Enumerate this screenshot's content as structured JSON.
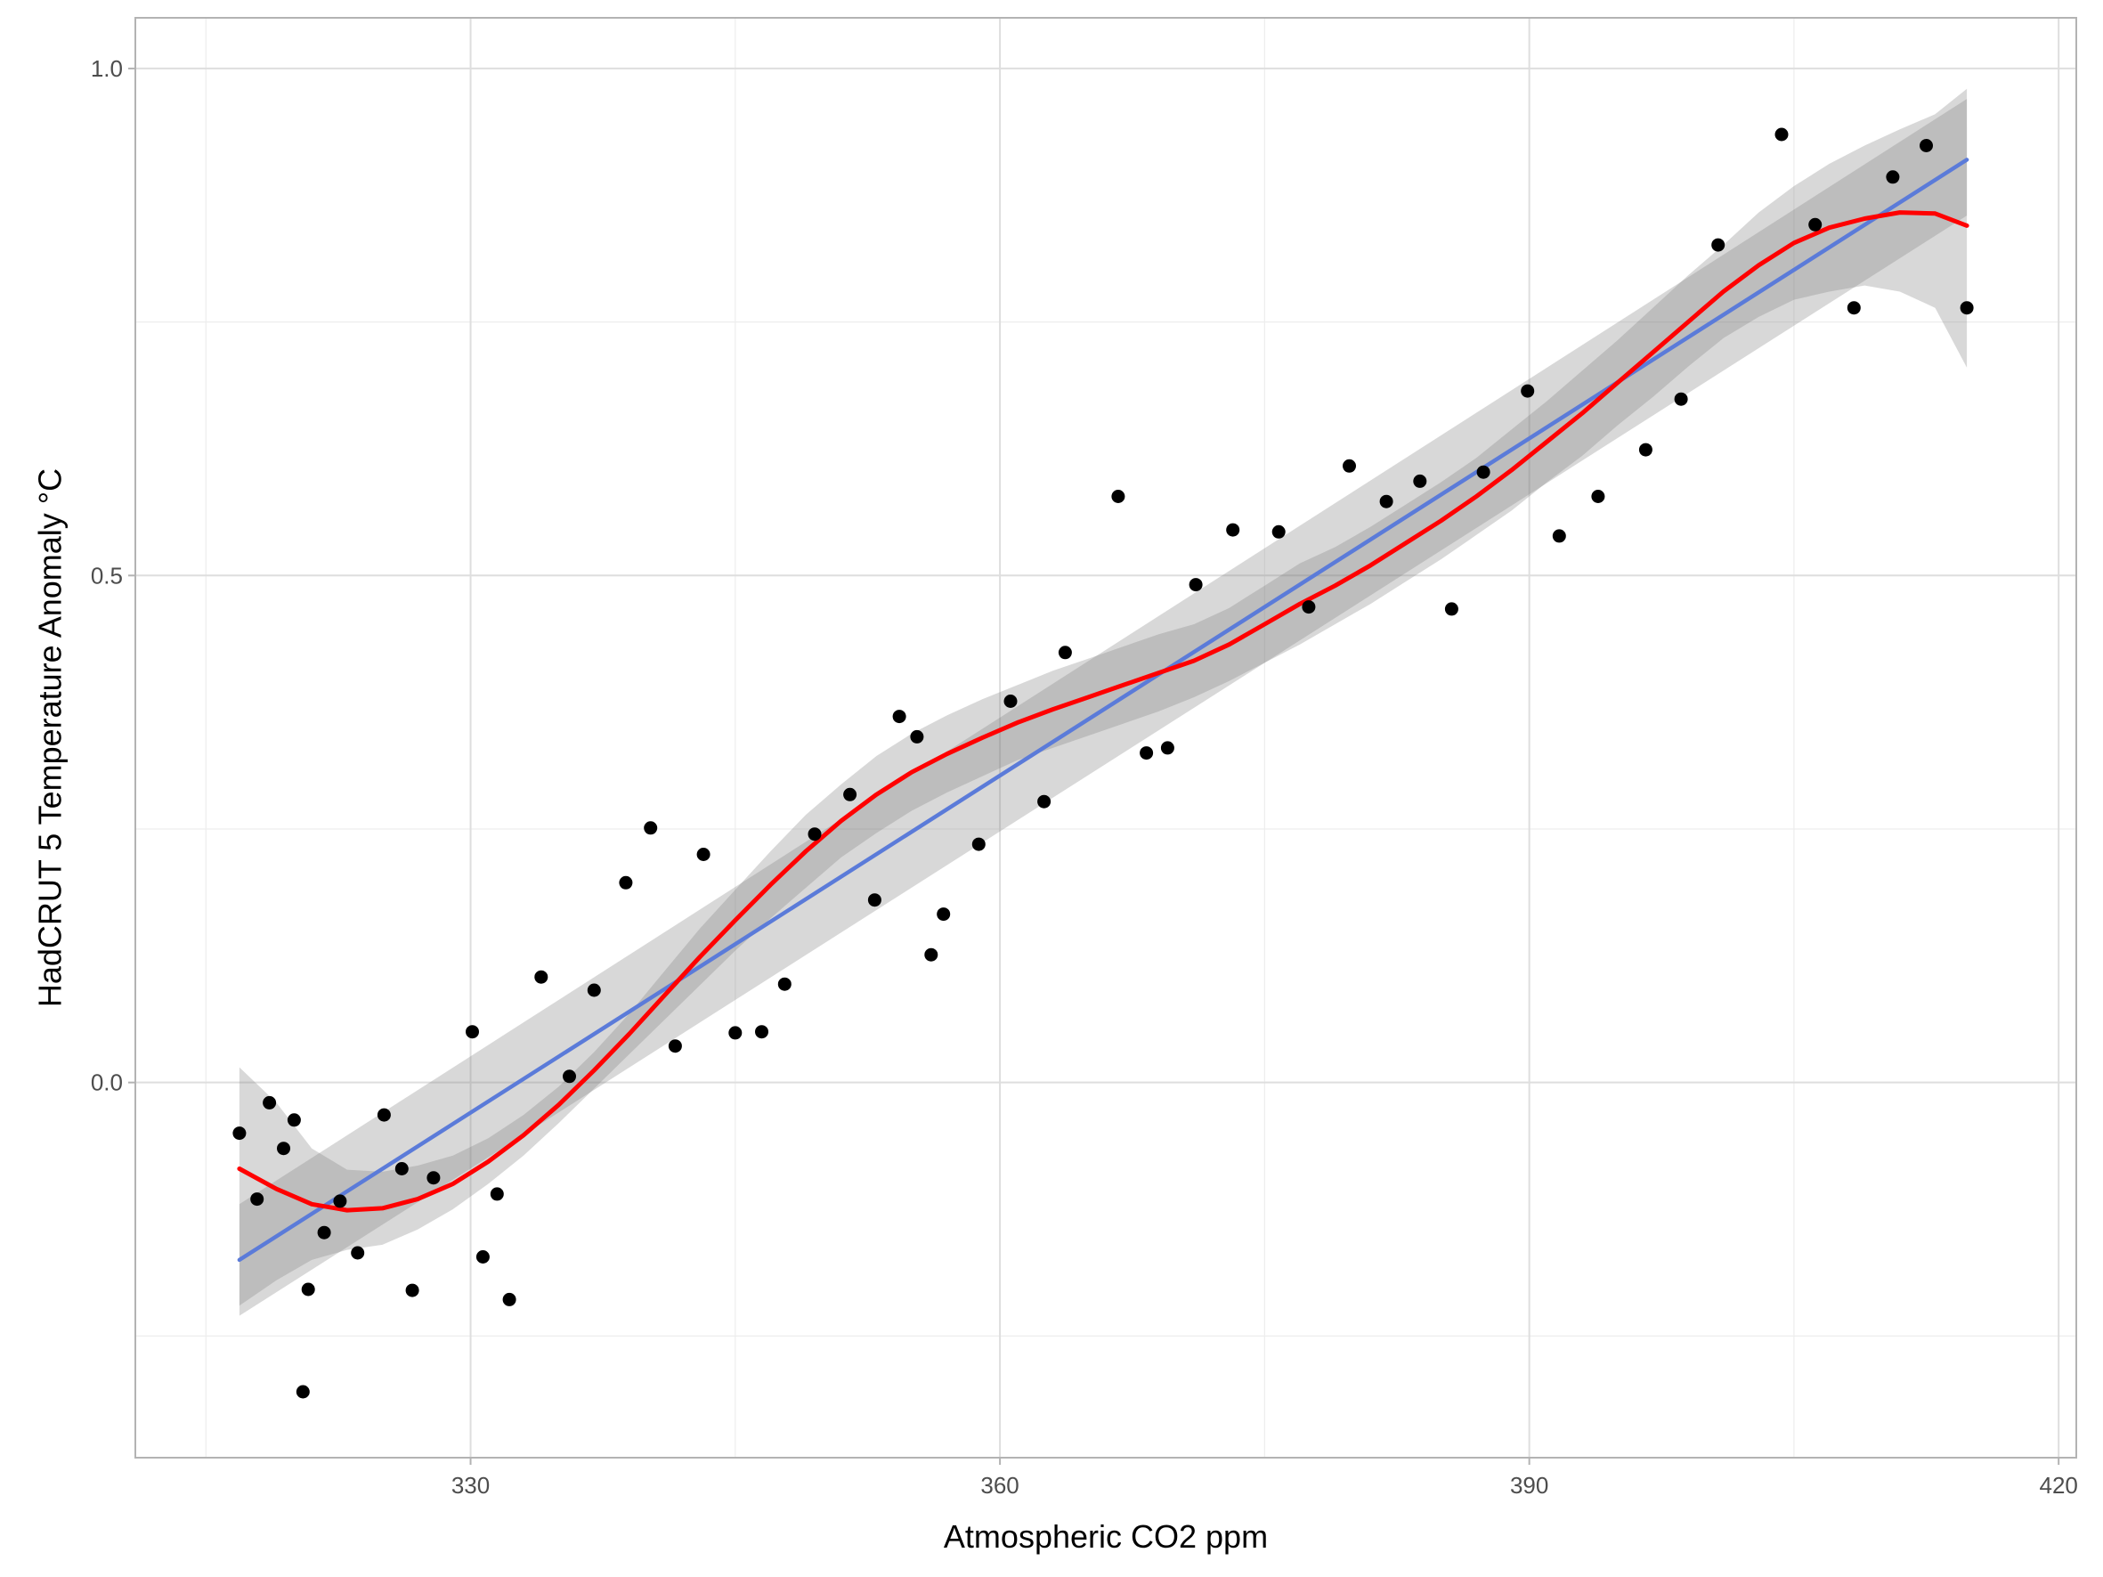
{
  "chart_data": {
    "type": "scatter",
    "title": "",
    "xlabel": "Atmospheric CO2 ppm",
    "ylabel": "HadCRUT 5 Temperature Anomaly °C",
    "xlim": [
      311,
      421
    ],
    "ylim": [
      -0.37,
      1.05
    ],
    "x_ticks": [
      330,
      360,
      390,
      420
    ],
    "x_tick_labels": [
      "330",
      "360",
      "390",
      "420"
    ],
    "y_ticks": [
      0.0,
      0.5,
      1.0
    ],
    "y_tick_labels": [
      "0.0",
      "0.5",
      "1.0"
    ],
    "y_minor_ticks": [
      -0.25,
      0.25,
      0.75
    ],
    "x_minor_ticks": [
      315,
      345,
      375,
      405
    ],
    "grid": true,
    "legend": "none",
    "points": [
      [
        316.9,
        -0.05
      ],
      [
        317.9,
        -0.115
      ],
      [
        318.6,
        -0.02
      ],
      [
        319.4,
        -0.065
      ],
      [
        320.0,
        -0.037
      ],
      [
        320.5,
        -0.305
      ],
      [
        320.8,
        -0.204
      ],
      [
        321.7,
        -0.148
      ],
      [
        322.6,
        -0.117
      ],
      [
        323.6,
        -0.168
      ],
      [
        325.1,
        -0.032
      ],
      [
        326.1,
        -0.085
      ],
      [
        326.7,
        -0.205
      ],
      [
        327.9,
        -0.094
      ],
      [
        330.1,
        0.05
      ],
      [
        330.7,
        -0.172
      ],
      [
        331.5,
        -0.11
      ],
      [
        332.2,
        -0.214
      ],
      [
        334.0,
        0.104
      ],
      [
        335.6,
        0.006
      ],
      [
        337.0,
        0.091
      ],
      [
        338.8,
        0.197
      ],
      [
        340.2,
        0.251
      ],
      [
        341.6,
        0.036
      ],
      [
        343.2,
        0.225
      ],
      [
        345.0,
        0.049
      ],
      [
        346.5,
        0.05
      ],
      [
        347.8,
        0.097
      ],
      [
        349.5,
        0.245
      ],
      [
        351.5,
        0.284
      ],
      [
        352.9,
        0.18
      ],
      [
        354.3,
        0.361
      ],
      [
        355.3,
        0.341
      ],
      [
        356.1,
        0.126
      ],
      [
        356.8,
        0.166
      ],
      [
        358.8,
        0.235
      ],
      [
        360.6,
        0.376
      ],
      [
        362.5,
        0.277
      ],
      [
        363.7,
        0.424
      ],
      [
        366.7,
        0.578
      ],
      [
        368.3,
        0.325
      ],
      [
        369.5,
        0.33
      ],
      [
        371.1,
        0.491
      ],
      [
        373.2,
        0.545
      ],
      [
        375.8,
        0.543
      ],
      [
        377.5,
        0.469
      ],
      [
        379.8,
        0.608
      ],
      [
        381.9,
        0.573
      ],
      [
        383.8,
        0.593
      ],
      [
        385.6,
        0.467
      ],
      [
        387.4,
        0.602
      ],
      [
        389.9,
        0.682
      ],
      [
        391.7,
        0.539
      ],
      [
        393.9,
        0.578
      ],
      [
        396.6,
        0.624
      ],
      [
        398.6,
        0.674
      ],
      [
        400.7,
        0.826
      ],
      [
        404.3,
        0.935
      ],
      [
        406.2,
        0.846
      ],
      [
        408.4,
        0.764
      ],
      [
        410.6,
        0.893
      ],
      [
        412.5,
        0.924
      ],
      [
        414.8,
        0.764
      ]
    ],
    "series": [
      {
        "kind": "linear_fit",
        "color": "#5b7bd9",
        "x": [
          316.9,
          414.8
        ],
        "y": [
          -0.175,
          0.91
        ],
        "ci_lower": [
          -0.23,
          0.855
        ],
        "ci_upper": [
          -0.12,
          0.97
        ]
      },
      {
        "kind": "loess_fit",
        "color": "#ff0000",
        "x": [
          316.9,
          319,
          321,
          323,
          325,
          327,
          329,
          331,
          333,
          335,
          337,
          339,
          341,
          343,
          345,
          347,
          349,
          351,
          353,
          355,
          357,
          359,
          361,
          363,
          365,
          367,
          369,
          371,
          373,
          375,
          377,
          379,
          381,
          383,
          385,
          387,
          389,
          391,
          393,
          395,
          397,
          399,
          401,
          403,
          405,
          407,
          409,
          411,
          413,
          414.8
        ],
        "y": [
          -0.085,
          -0.105,
          -0.12,
          -0.126,
          -0.124,
          -0.115,
          -0.1,
          -0.078,
          -0.052,
          -0.022,
          0.012,
          0.048,
          0.086,
          0.124,
          0.16,
          0.195,
          0.228,
          0.258,
          0.284,
          0.306,
          0.324,
          0.34,
          0.355,
          0.368,
          0.38,
          0.392,
          0.404,
          0.416,
          0.432,
          0.452,
          0.472,
          0.49,
          0.51,
          0.532,
          0.554,
          0.578,
          0.604,
          0.632,
          0.66,
          0.69,
          0.72,
          0.75,
          0.78,
          0.806,
          0.828,
          0.843,
          0.852,
          0.858,
          0.857,
          0.845
        ],
        "ci_lower": [
          -0.22,
          -0.195,
          -0.175,
          -0.165,
          -0.16,
          -0.145,
          -0.125,
          -0.1,
          -0.072,
          -0.04,
          -0.006,
          0.028,
          0.062,
          0.096,
          0.13,
          0.162,
          0.192,
          0.222,
          0.246,
          0.268,
          0.286,
          0.302,
          0.318,
          0.33,
          0.342,
          0.354,
          0.366,
          0.38,
          0.396,
          0.414,
          0.432,
          0.452,
          0.472,
          0.494,
          0.516,
          0.54,
          0.564,
          0.592,
          0.618,
          0.648,
          0.676,
          0.706,
          0.734,
          0.755,
          0.772,
          0.78,
          0.786,
          0.78,
          0.764,
          0.705
        ],
        "ci_upper": [
          0.015,
          -0.02,
          -0.065,
          -0.086,
          -0.088,
          -0.082,
          -0.072,
          -0.055,
          -0.032,
          -0.004,
          0.03,
          0.068,
          0.11,
          0.152,
          0.19,
          0.228,
          0.264,
          0.294,
          0.322,
          0.344,
          0.362,
          0.378,
          0.392,
          0.406,
          0.418,
          0.43,
          0.442,
          0.452,
          0.468,
          0.49,
          0.512,
          0.528,
          0.548,
          0.57,
          0.592,
          0.616,
          0.644,
          0.672,
          0.702,
          0.732,
          0.764,
          0.796,
          0.826,
          0.858,
          0.884,
          0.906,
          0.924,
          0.94,
          0.955,
          0.98
        ]
      }
    ]
  }
}
